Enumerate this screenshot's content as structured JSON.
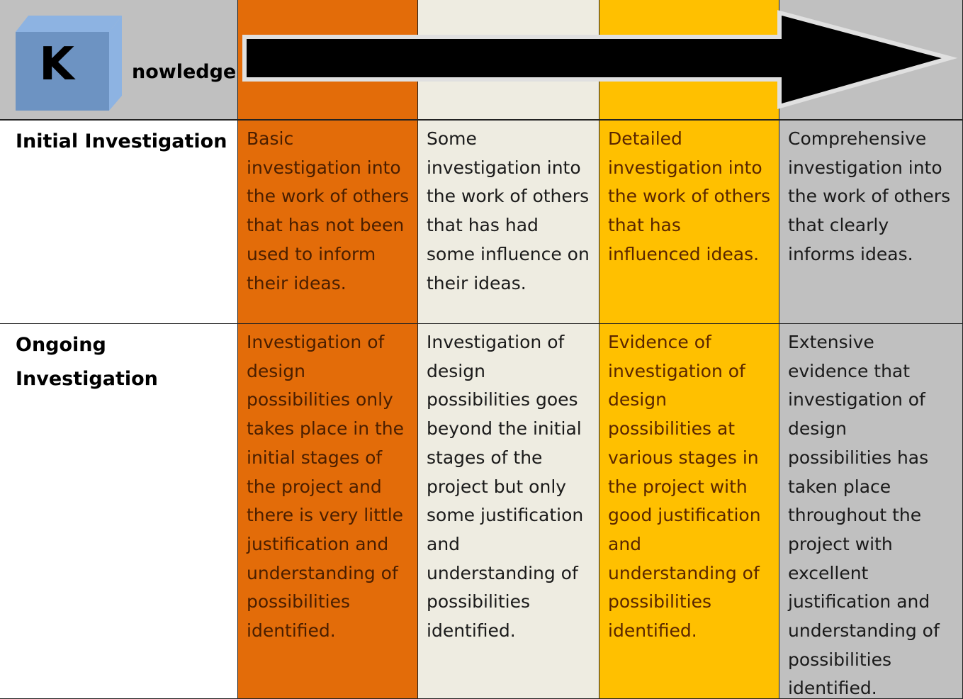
{
  "header": {
    "letter": "K",
    "title": "nowledge"
  },
  "rows": [
    {
      "label": "Initial Investigation",
      "cells": [
        "Basic investigation into the work of others that has not been used to inform their ideas.",
        "Some investigation into the work of others that has had some influence on their ideas.",
        "Detailed investigation into the work of others that has influenced ideas.",
        "Comprehensive investigation into the work of others that clearly informs ideas."
      ]
    },
    {
      "label": "Ongoing Investigation",
      "cells": [
        "Investigation of design possibilities only takes place in the initial stages of the project and there is very little justification and understanding of possibilities identified.",
        "Investigation of design possibilities goes beyond the initial stages of the project but only some justification and understanding of possibilities identified.",
        "Evidence of investigation of design possibilities at various stages in the project with good justification and understanding of possibilities identified.",
        "Extensive evidence that investigation of design possibilities has taken place throughout the project with excellent justification and understanding of possibilities identified."
      ]
    }
  ]
}
